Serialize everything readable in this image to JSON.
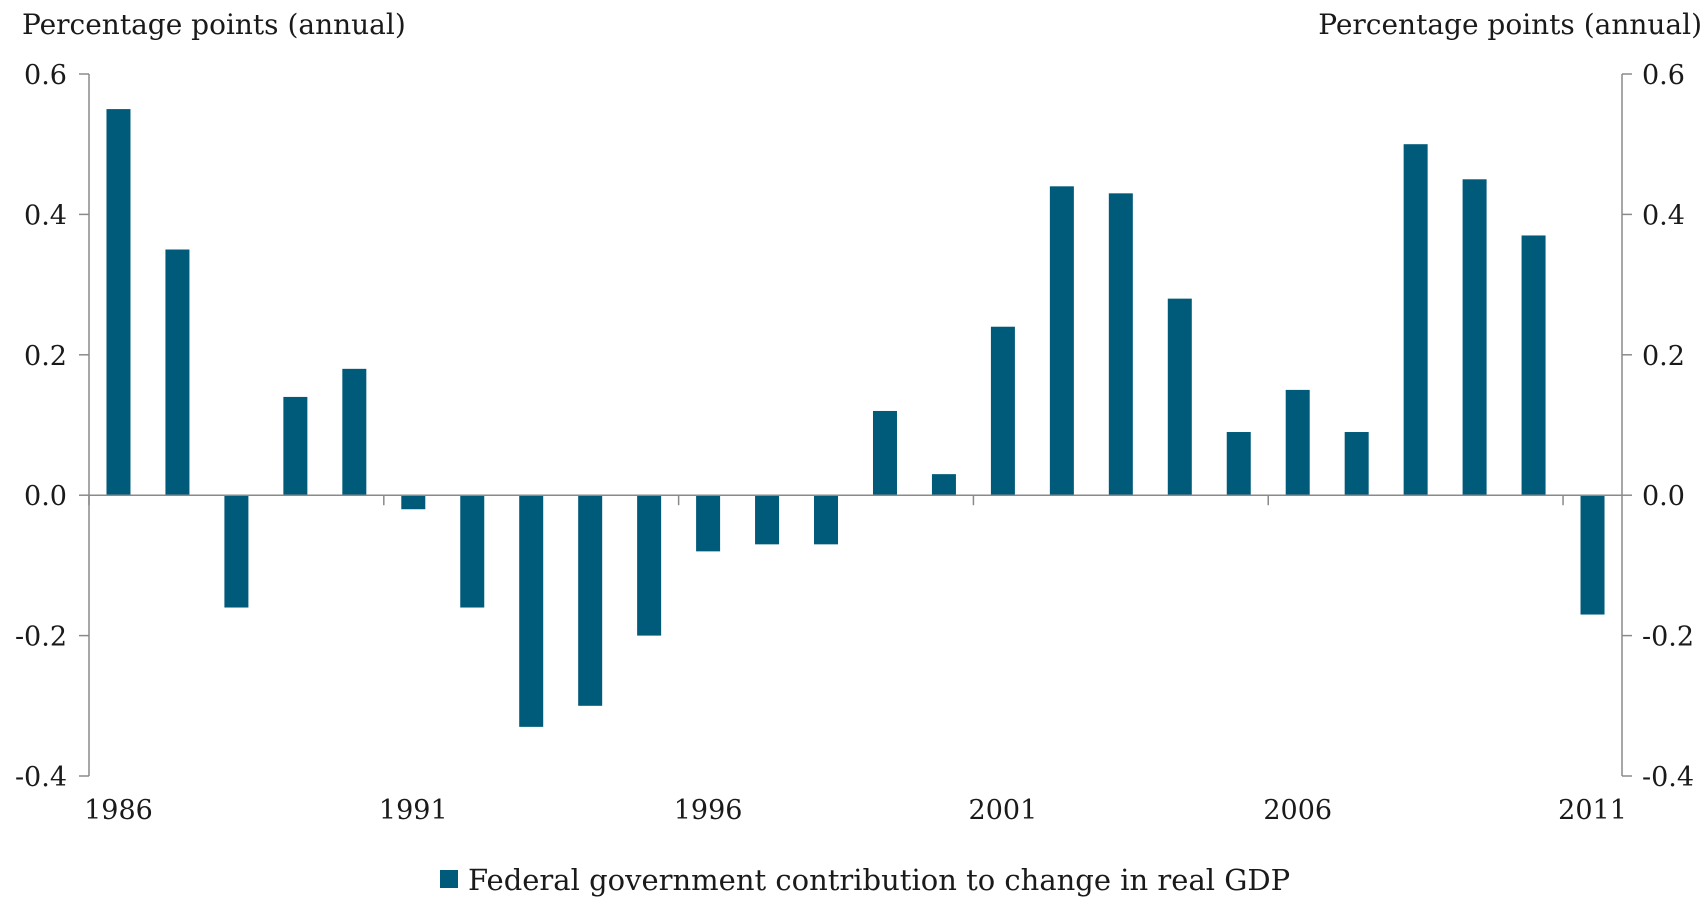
{
  "chart_data": {
    "type": "bar",
    "ylabel_left": "Percentage points (annual)",
    "ylabel_right": "Percentage points (annual)",
    "ylim": [
      -0.4,
      0.6
    ],
    "yticks": [
      0.6,
      0.4,
      0.2,
      0.0,
      -0.2,
      -0.4
    ],
    "ytick_labels": [
      "0.6",
      "0.4",
      "0.2",
      "0.0",
      "-0.2",
      "-0.4"
    ],
    "categories": [
      "1986",
      "1987",
      "1988",
      "1989",
      "1990",
      "1991",
      "1992",
      "1993",
      "1994",
      "1995",
      "1996",
      "1997",
      "1998",
      "1999",
      "2000",
      "2001",
      "2002",
      "2003",
      "2004",
      "2005",
      "2006",
      "2007",
      "2008",
      "2009",
      "2010",
      "2011"
    ],
    "xtick_labels": [
      "1986",
      "1991",
      "1996",
      "2001",
      "2006",
      "2011"
    ],
    "series": [
      {
        "name": "Federal government contribution to change in real GDP",
        "color": "#005a7a",
        "values": [
          0.55,
          0.35,
          -0.16,
          0.14,
          0.18,
          -0.02,
          -0.16,
          -0.33,
          -0.3,
          -0.2,
          -0.08,
          -0.07,
          -0.07,
          0.12,
          0.03,
          0.24,
          0.44,
          0.43,
          0.28,
          0.09,
          0.15,
          0.09,
          0.5,
          0.45,
          0.37,
          -0.17
        ]
      }
    ],
    "legend_position": "bottom-center",
    "grid": false
  }
}
